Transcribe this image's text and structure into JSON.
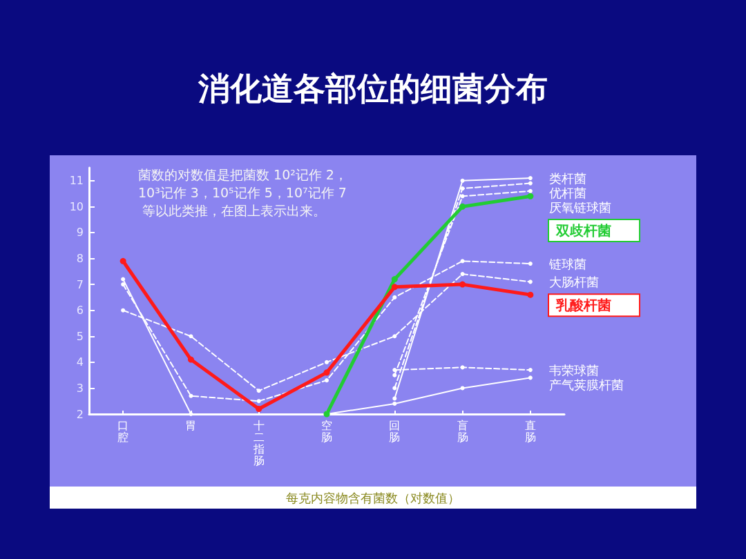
{
  "chart_data": {
    "type": "line",
    "title": "消化道各部位的细菌分布",
    "xlabel": "每克内容物含有菌数（对数值）",
    "annotations": [
      "菌数的对数值是把菌数 10²记作 2，10³记作 3，10⁵记作 5，10⁷记作 7 等以此类推，在图上表示出来。"
    ],
    "categories": [
      "口腔",
      "胃",
      "十二指肠",
      "空肠",
      "回肠",
      "盲肠",
      "直肠"
    ],
    "series": [
      {
        "name": "类杆菌",
        "color": "#ffffff",
        "line_style": "solid",
        "values": [
          7.2,
          2.0,
          null,
          null,
          2.6,
          11.0,
          11.1
        ]
      },
      {
        "name": "优杆菌",
        "color": "#ffffff",
        "line_style": "dashed",
        "values": [
          null,
          null,
          null,
          null,
          3.0,
          10.7,
          10.9
        ]
      },
      {
        "name": "厌氧链球菌",
        "color": "#ffffff",
        "line_style": "dashed",
        "values": [
          null,
          null,
          null,
          null,
          3.5,
          10.4,
          10.6
        ]
      },
      {
        "name": "双歧杆菌",
        "color": "#22cc33",
        "line_style": "solid",
        "values": [
          null,
          null,
          null,
          2.0,
          7.2,
          10.0,
          10.4
        ]
      },
      {
        "name": "链球菌",
        "color": "#ffffff",
        "line_style": "dashed",
        "values": [
          7.0,
          2.7,
          2.5,
          3.3,
          6.5,
          7.9,
          7.8
        ]
      },
      {
        "name": "大肠杆菌",
        "color": "#ffffff",
        "line_style": "dashed",
        "values": [
          6.0,
          5.0,
          2.9,
          4.0,
          5.0,
          7.4,
          7.1
        ]
      },
      {
        "name": "乳酸杆菌",
        "color": "#ff1a1a",
        "line_style": "solid",
        "values": [
          7.9,
          4.1,
          2.2,
          3.6,
          6.9,
          7.0,
          6.6
        ]
      },
      {
        "name": "韦荣球菌",
        "color": "#ffffff",
        "line_style": "dashed",
        "values": [
          null,
          null,
          null,
          null,
          3.7,
          3.8,
          3.7
        ]
      },
      {
        "name": "产气荚膜杆菌",
        "color": "#ffffff",
        "line_style": "solid",
        "values": [
          null,
          null,
          null,
          2.0,
          2.4,
          3.0,
          3.4
        ]
      }
    ],
    "ylim": [
      2,
      11.5
    ],
    "yticks": [
      2,
      3,
      4,
      5,
      6,
      7,
      8,
      9,
      10,
      11
    ],
    "grid": false,
    "legend": false,
    "marker": "circle"
  }
}
